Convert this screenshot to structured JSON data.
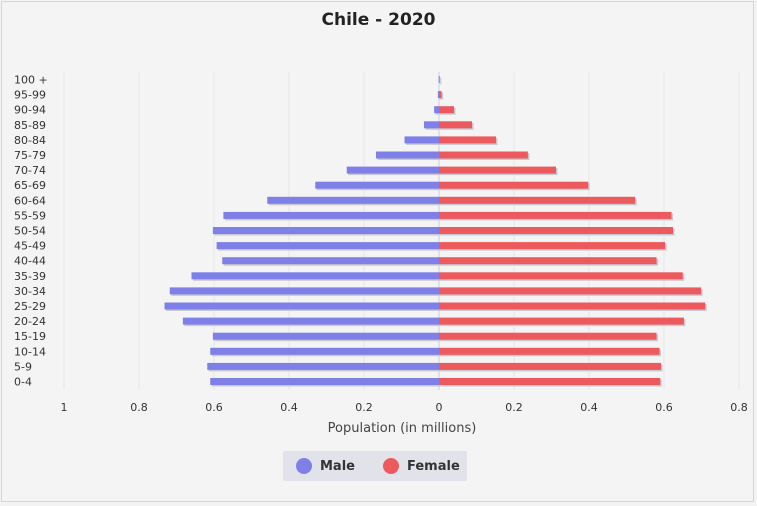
{
  "chart_data": {
    "type": "bar",
    "orientation": "horizontal",
    "title": "Chile - 2020",
    "xlabel": "Population (in millions)",
    "xlim_left": [
      0,
      1
    ],
    "xlim_right": [
      0,
      0.8
    ],
    "x_ticks_left": [
      "1",
      "0.8",
      "0.6",
      "0.4",
      "0.2",
      "0"
    ],
    "x_ticks_right": [
      "0.2",
      "0.4",
      "0.6",
      "0.8"
    ],
    "categories": [
      "100 +",
      "95-99",
      "90-94",
      "85-89",
      "80-84",
      "75-79",
      "70-74",
      "65-69",
      "60-64",
      "55-59",
      "50-54",
      "45-49",
      "40-44",
      "35-39",
      "30-34",
      "25-29",
      "20-24",
      "15-19",
      "10-14",
      "5-9",
      "0-4"
    ],
    "series": [
      {
        "name": "Male",
        "color": "#7f7fe8",
        "values": [
          0.001,
          0.003,
          0.013,
          0.04,
          0.092,
          0.168,
          0.246,
          0.33,
          0.458,
          0.575,
          0.603,
          0.593,
          0.578,
          0.66,
          0.718,
          0.732,
          0.683,
          0.603,
          0.61,
          0.618,
          0.61
        ]
      },
      {
        "name": "Female",
        "color": "#ec5a5e",
        "values": [
          0.002,
          0.007,
          0.04,
          0.088,
          0.152,
          0.237,
          0.312,
          0.398,
          0.523,
          0.62,
          0.624,
          0.603,
          0.58,
          0.65,
          0.699,
          0.71,
          0.653,
          0.58,
          0.588,
          0.592,
          0.59
        ]
      }
    ],
    "grid": true,
    "legend_position": "bottom-center"
  }
}
